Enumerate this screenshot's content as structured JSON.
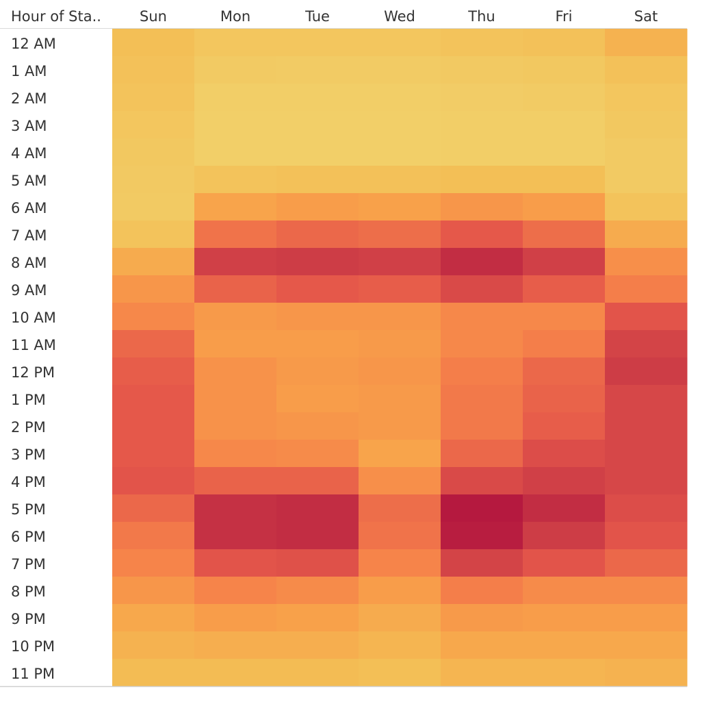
{
  "chart_data": {
    "type": "heatmap",
    "row_header": "Hour of Sta..",
    "columns": [
      "Sun",
      "Mon",
      "Tue",
      "Wed",
      "Thu",
      "Fri",
      "Sat"
    ],
    "rows": [
      "12 AM",
      "1 AM",
      "2 AM",
      "3 AM",
      "4 AM",
      "5 AM",
      "6 AM",
      "7 AM",
      "8 AM",
      "9 AM",
      "10 AM",
      "11 AM",
      "12 PM",
      "1 PM",
      "2 PM",
      "3 PM",
      "4 PM",
      "5 PM",
      "6 PM",
      "7 PM",
      "8 PM",
      "9 PM",
      "10 PM",
      "11 PM"
    ],
    "values": [
      [
        0.16,
        0.1,
        0.1,
        0.1,
        0.12,
        0.14,
        0.24
      ],
      [
        0.14,
        0.06,
        0.05,
        0.05,
        0.07,
        0.08,
        0.14
      ],
      [
        0.12,
        0.03,
        0.03,
        0.03,
        0.04,
        0.05,
        0.1
      ],
      [
        0.1,
        0.02,
        0.02,
        0.02,
        0.03,
        0.03,
        0.08
      ],
      [
        0.08,
        0.02,
        0.02,
        0.02,
        0.03,
        0.03,
        0.06
      ],
      [
        0.07,
        0.12,
        0.14,
        0.14,
        0.16,
        0.16,
        0.06
      ],
      [
        0.06,
        0.32,
        0.36,
        0.34,
        0.4,
        0.36,
        0.12
      ],
      [
        0.12,
        0.56,
        0.6,
        0.58,
        0.66,
        0.58,
        0.28
      ],
      [
        0.28,
        0.8,
        0.82,
        0.8,
        0.9,
        0.8,
        0.44
      ],
      [
        0.4,
        0.62,
        0.66,
        0.64,
        0.74,
        0.64,
        0.52
      ],
      [
        0.48,
        0.38,
        0.4,
        0.4,
        0.48,
        0.48,
        0.68
      ],
      [
        0.6,
        0.36,
        0.36,
        0.38,
        0.48,
        0.52,
        0.78
      ],
      [
        0.64,
        0.42,
        0.38,
        0.4,
        0.52,
        0.6,
        0.82
      ],
      [
        0.66,
        0.42,
        0.36,
        0.38,
        0.54,
        0.62,
        0.76
      ],
      [
        0.66,
        0.42,
        0.4,
        0.38,
        0.54,
        0.64,
        0.76
      ],
      [
        0.66,
        0.48,
        0.46,
        0.32,
        0.6,
        0.72,
        0.76
      ],
      [
        0.68,
        0.62,
        0.62,
        0.44,
        0.74,
        0.8,
        0.76
      ],
      [
        0.6,
        0.88,
        0.9,
        0.58,
        1.0,
        0.9,
        0.72
      ],
      [
        0.54,
        0.88,
        0.9,
        0.56,
        0.98,
        0.82,
        0.68
      ],
      [
        0.5,
        0.68,
        0.7,
        0.5,
        0.78,
        0.68,
        0.6
      ],
      [
        0.4,
        0.5,
        0.46,
        0.36,
        0.52,
        0.46,
        0.46
      ],
      [
        0.3,
        0.36,
        0.34,
        0.28,
        0.38,
        0.36,
        0.36
      ],
      [
        0.24,
        0.26,
        0.26,
        0.22,
        0.3,
        0.3,
        0.3
      ],
      [
        0.18,
        0.18,
        0.18,
        0.16,
        0.22,
        0.22,
        0.24
      ]
    ],
    "color_scale": {
      "stops": [
        "#F2D16B",
        "#F3BE55",
        "#F8A24A",
        "#F6844A",
        "#E4564A",
        "#CB3B46",
        "#B5193F"
      ],
      "domain": [
        0,
        1
      ]
    },
    "legend": "none",
    "grid": false
  }
}
